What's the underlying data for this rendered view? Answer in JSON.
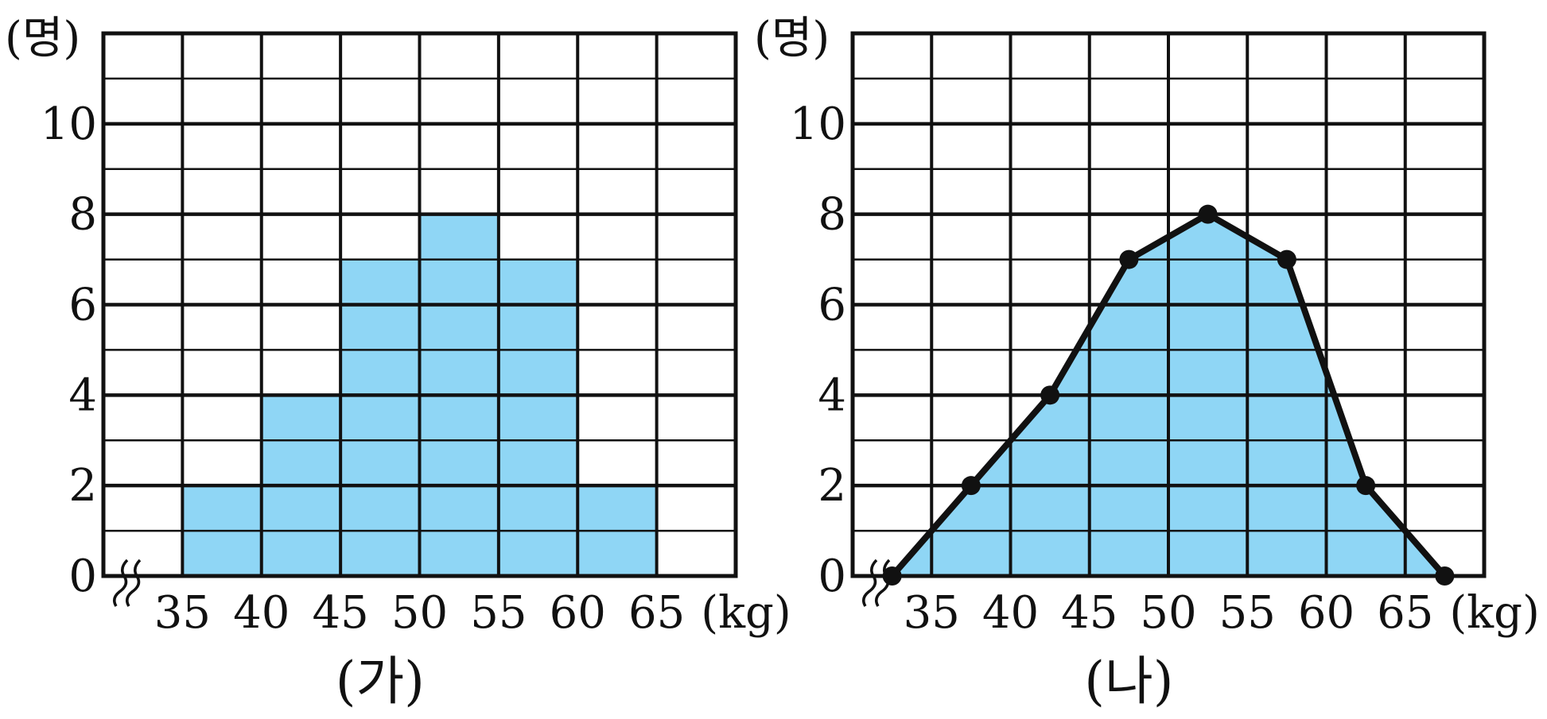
{
  "colors": {
    "fill": "#8FD6F5",
    "line": "#111111",
    "background": "#ffffff"
  },
  "chart_data": [
    {
      "type": "bar",
      "variant": "histogram",
      "caption": "(가)",
      "ylabel": "(명)",
      "xlabel": "(kg)",
      "y_ticks": [
        "0",
        "2",
        "4",
        "6",
        "8",
        "10"
      ],
      "x_ticks": [
        "35",
        "40",
        "45",
        "50",
        "55",
        "60",
        "65"
      ],
      "ylim": [
        0,
        12
      ],
      "xlim": [
        30,
        70
      ],
      "axis_break": true,
      "grid": true,
      "bins": [
        {
          "from": 35,
          "to": 40,
          "value": 2
        },
        {
          "from": 40,
          "to": 45,
          "value": 4
        },
        {
          "from": 45,
          "to": 50,
          "value": 7
        },
        {
          "from": 50,
          "to": 55,
          "value": 8
        },
        {
          "from": 55,
          "to": 60,
          "value": 7
        },
        {
          "from": 60,
          "to": 65,
          "value": 2
        }
      ]
    },
    {
      "type": "line",
      "variant": "frequency-polygon",
      "caption": "(나)",
      "ylabel": "(명)",
      "xlabel": "(kg)",
      "y_ticks": [
        "0",
        "2",
        "4",
        "6",
        "8",
        "10"
      ],
      "x_ticks": [
        "35",
        "40",
        "45",
        "50",
        "55",
        "60",
        "65"
      ],
      "ylim": [
        0,
        12
      ],
      "xlim": [
        30,
        70
      ],
      "axis_break": true,
      "grid": true,
      "area_filled": true,
      "points": [
        {
          "x": 32.5,
          "y": 0
        },
        {
          "x": 37.5,
          "y": 2
        },
        {
          "x": 42.5,
          "y": 4
        },
        {
          "x": 47.5,
          "y": 7
        },
        {
          "x": 52.5,
          "y": 8
        },
        {
          "x": 57.5,
          "y": 7
        },
        {
          "x": 62.5,
          "y": 2
        },
        {
          "x": 67.5,
          "y": 0
        }
      ]
    }
  ]
}
